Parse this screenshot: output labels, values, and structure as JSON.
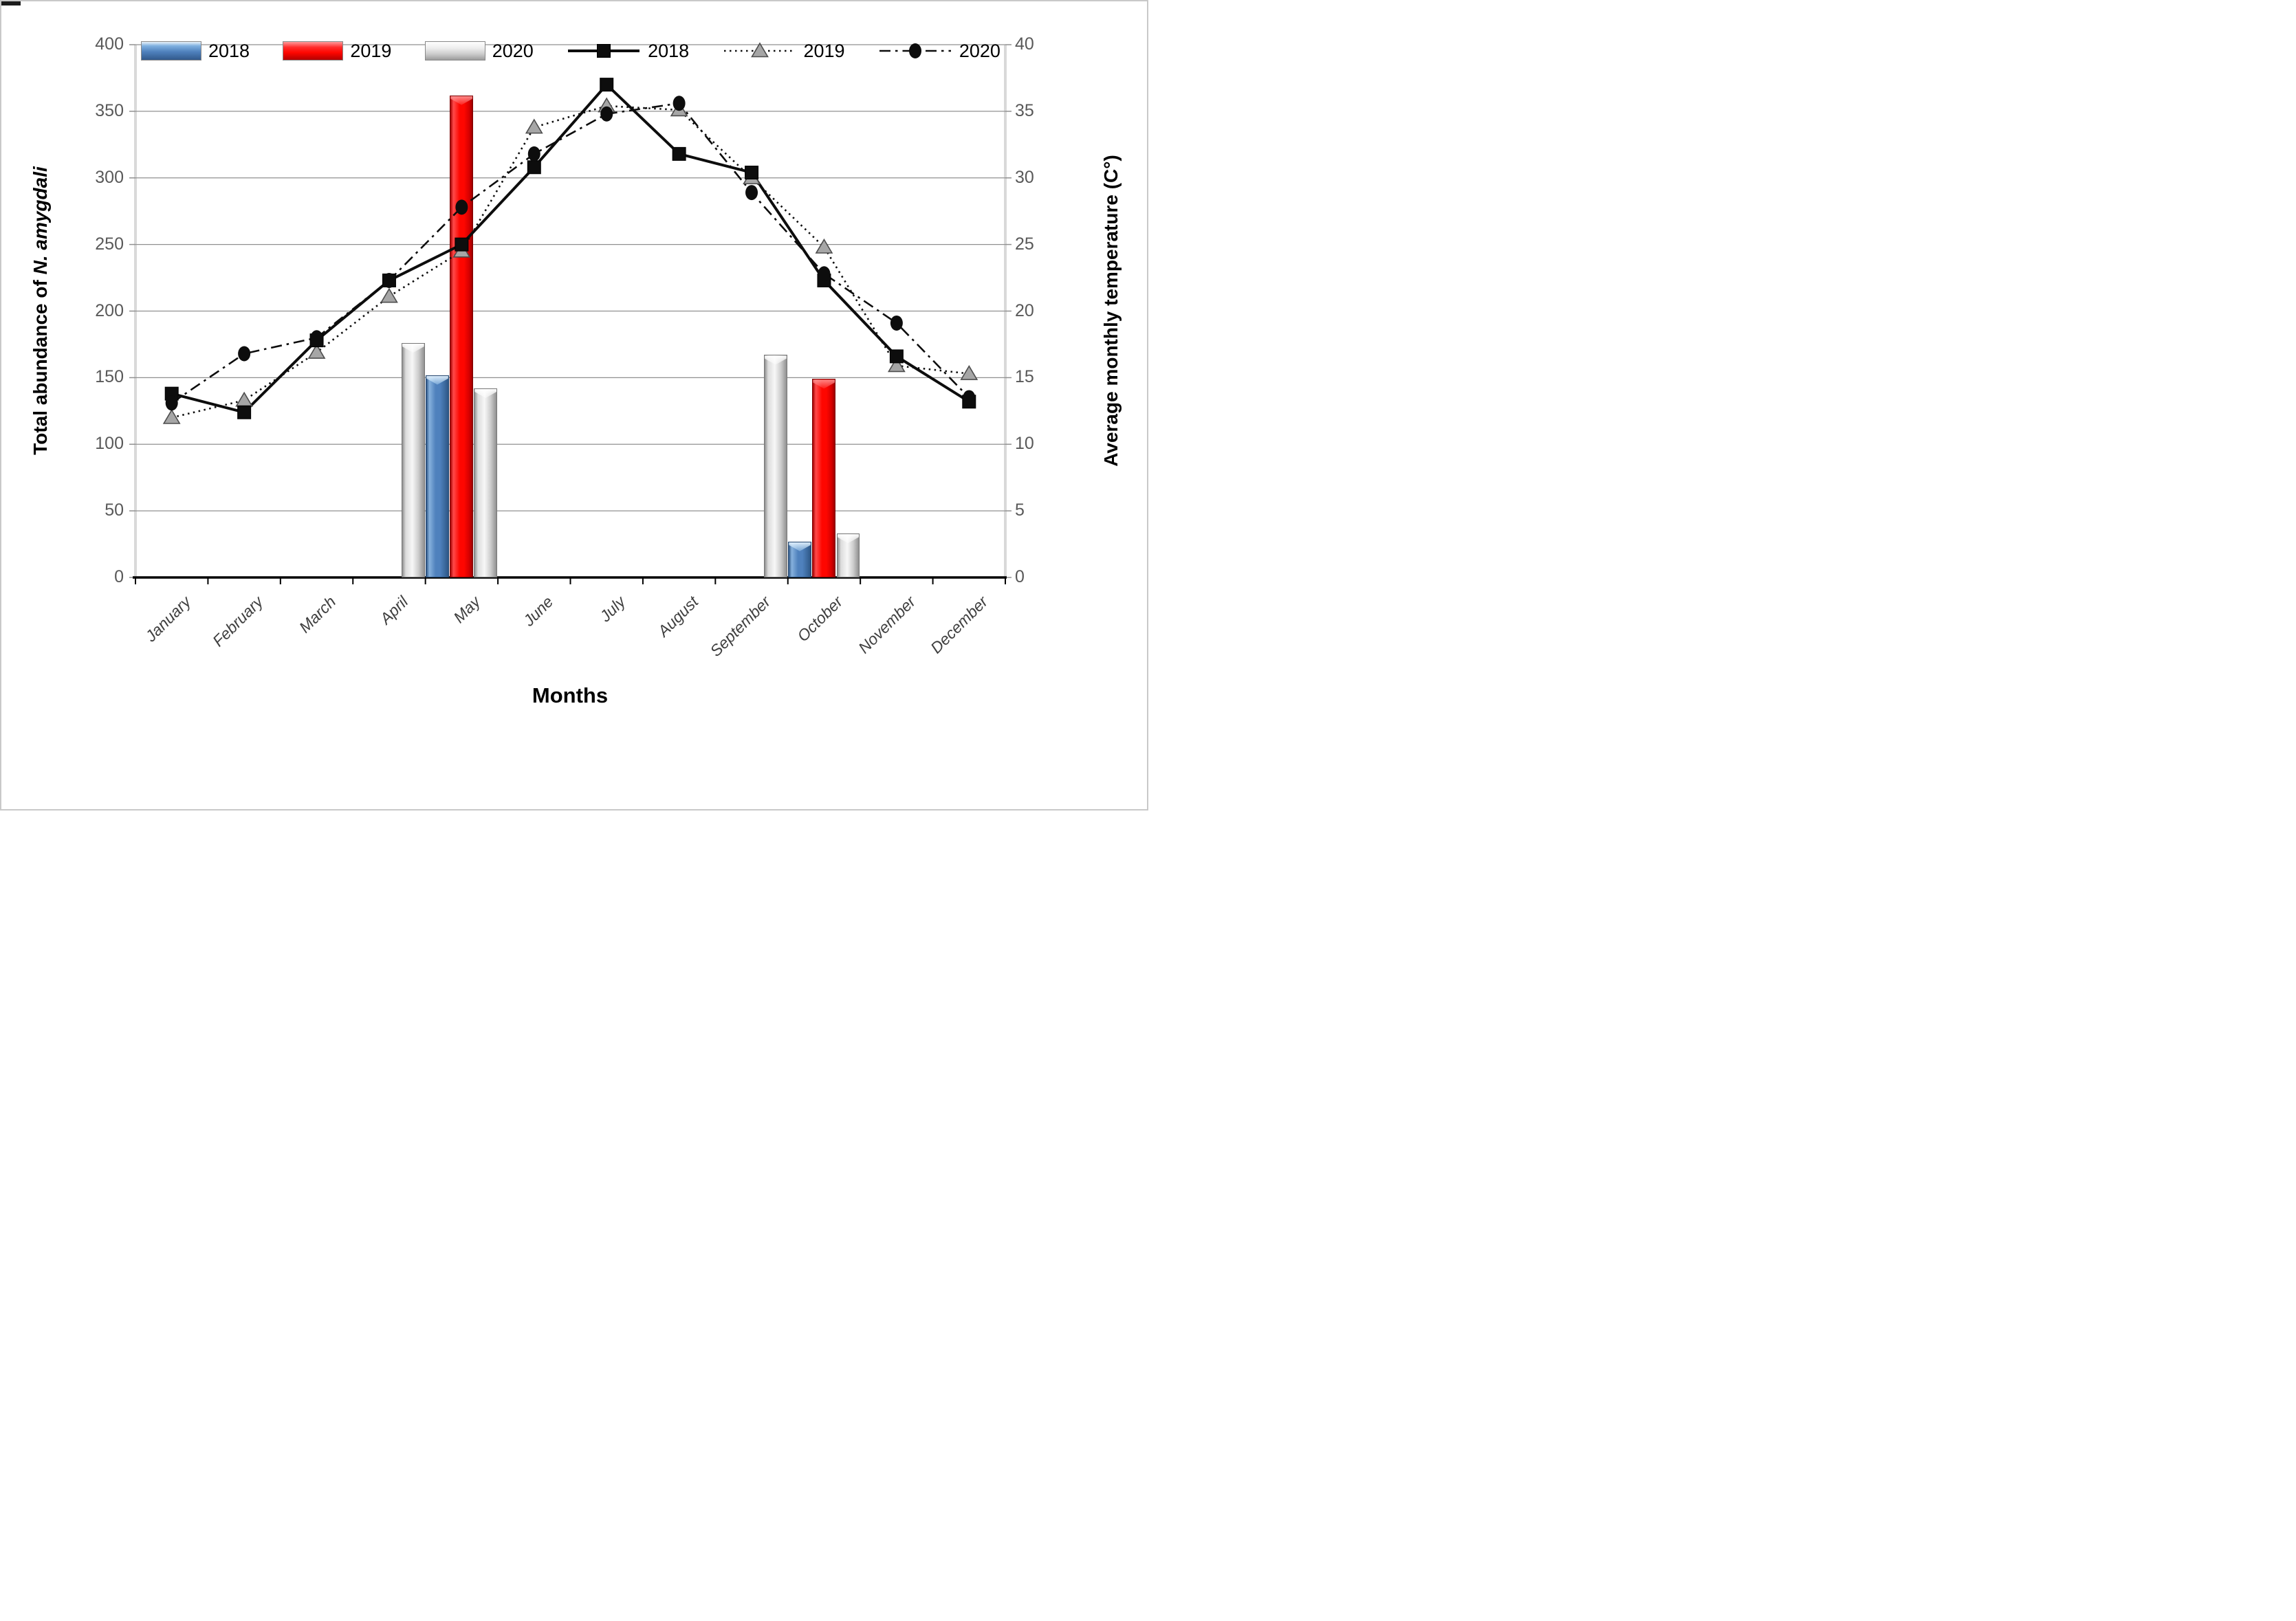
{
  "page": {
    "background": "#ffffff",
    "border_color": "#c9c9c9"
  },
  "chart_data": {
    "type": "combo-bar-line",
    "categories": [
      "January",
      "February",
      "March",
      "April",
      "May",
      "June",
      "July",
      "August",
      "September",
      "October",
      "November",
      "December"
    ],
    "bar_series": [
      {
        "name": "2018",
        "color": "#4f81bd",
        "values": [
          0,
          0,
          0,
          0,
          152,
          0,
          0,
          0,
          0,
          27,
          0,
          0
        ]
      },
      {
        "name": "2019",
        "color": "#fe0600",
        "values": [
          0,
          0,
          0,
          0,
          362,
          0,
          0,
          0,
          0,
          149,
          0,
          0
        ]
      },
      {
        "name": "2020",
        "color": "#bfbfbf",
        "values": [
          0,
          0,
          0,
          176,
          142,
          0,
          0,
          0,
          167,
          33,
          0,
          0
        ]
      }
    ],
    "line_series": [
      {
        "name": "2018",
        "marker": "square",
        "line_style": "solid",
        "color": "#0d0d0d",
        "values": [
          13.8,
          12.4,
          17.8,
          22.3,
          25.0,
          30.8,
          37.0,
          31.8,
          30.4,
          22.3,
          16.6,
          13.2
        ]
      },
      {
        "name": "2019",
        "marker": "triangle",
        "line_style": "dotted",
        "color": "#0d0d0d",
        "values": [
          12.0,
          13.3,
          16.9,
          21.1,
          24.5,
          33.8,
          35.4,
          35.1,
          30.0,
          24.8,
          15.9,
          15.3
        ]
      },
      {
        "name": "2020",
        "marker": "circle",
        "line_style": "dash-dot",
        "color": "#0d0d0d",
        "values": [
          13.1,
          16.8,
          18.0,
          22.3,
          27.8,
          31.8,
          34.8,
          35.6,
          28.9,
          22.8,
          19.1,
          13.5
        ]
      }
    ],
    "left_axis": {
      "title_prefix": "Total abundance of ",
      "title_species": "N. amygdali",
      "min": 0,
      "max": 400,
      "step": 50,
      "ticks": [
        "0",
        "50",
        "100",
        "150",
        "200",
        "250",
        "300",
        "350",
        "400"
      ]
    },
    "right_axis": {
      "title": "Average monthly temperature (C°)",
      "min": 0,
      "max": 40,
      "step": 5,
      "ticks": [
        "0",
        "5",
        "10",
        "15",
        "20",
        "25",
        "30",
        "35",
        "40"
      ]
    },
    "x_axis": {
      "title": "Months"
    },
    "legend_position": "top",
    "grid": "horizontal",
    "marker_colors": {
      "square": "#0d0d0d",
      "triangle": "#a6a6a6",
      "circle": "#0d0d0d"
    }
  }
}
